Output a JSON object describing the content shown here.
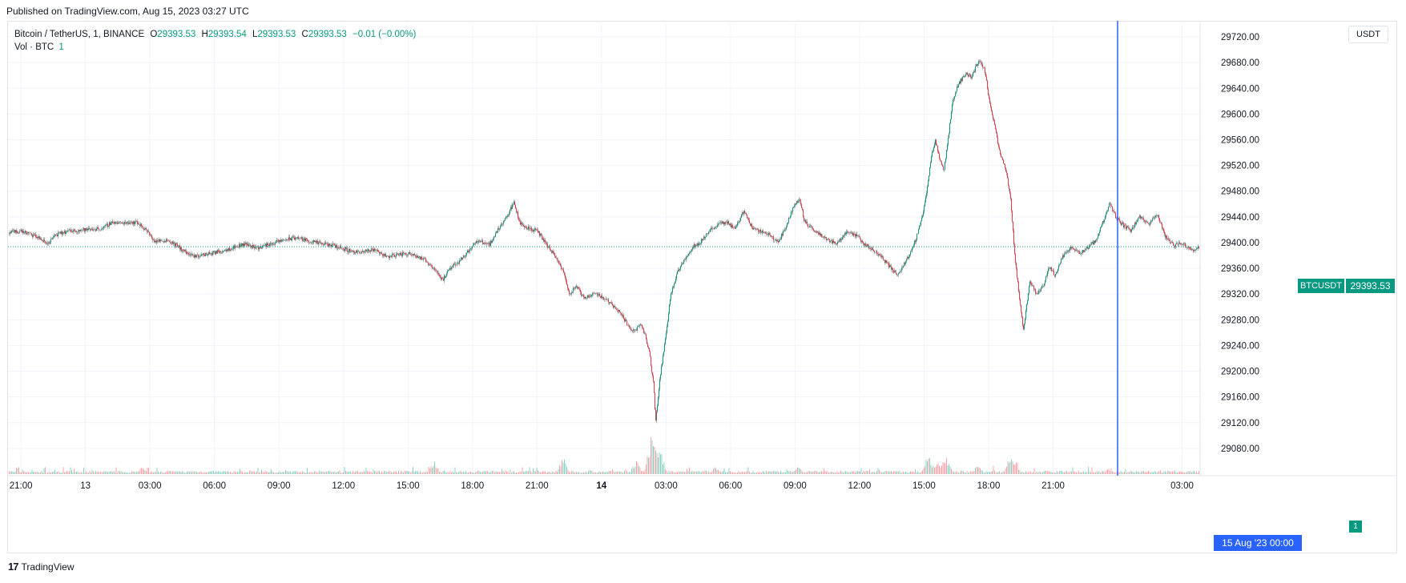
{
  "header": {
    "published": "Published on TradingView.com, Aug 15, 2023 03:27 UTC"
  },
  "legend": {
    "symbol": "Bitcoin / TetherUS, 1, BINANCE",
    "o_label": "O",
    "o_value": "29393.53",
    "h_label": "H",
    "h_value": "29393.54",
    "l_label": "L",
    "l_value": "29393.53",
    "c_label": "C",
    "c_value": "29393.53",
    "change": "−0.01 (−0.00%)",
    "vol_label": "Vol · BTC",
    "vol_value": "1"
  },
  "scale": {
    "currency": "USDT",
    "last_price": "29393.53",
    "symbol_tag": "BTCUSDT",
    "volume_tag": "1",
    "crosshair_time": "15 Aug '23   00:00"
  },
  "brand": {
    "logo": "17",
    "name": "TradingView"
  },
  "colors": {
    "up": "#089981",
    "down": "#f23645",
    "wick": "#4a4a4a",
    "grid": "#f0f3fa",
    "crosshair": "#2962ff",
    "price_line": "#089981"
  },
  "chart_data": {
    "type": "candlestick",
    "title": "Bitcoin / TetherUS, 1, BINANCE",
    "ylim": [
      29040,
      29740
    ],
    "y_ticks": [
      29080,
      29120,
      29160,
      29200,
      29240,
      29280,
      29320,
      29360,
      29400,
      29440,
      29480,
      29520,
      29560,
      29600,
      29640,
      29680,
      29720
    ],
    "y_tick_labels": [
      "29080.00",
      "29120.00",
      "29160.00",
      "29200.00",
      "29240.00",
      "29280.00",
      "29320.00",
      "29360.00",
      "29400.00",
      "29440.00",
      "29480.00",
      "29520.00",
      "29560.00",
      "29600.00",
      "29640.00",
      "29680.00",
      "29720.00"
    ],
    "x_range_hours": [
      -3.6,
      51.8
    ],
    "x_ticks": [
      {
        "h": -3,
        "label": "21:00",
        "bold": false
      },
      {
        "h": 0,
        "label": "13",
        "bold": false
      },
      {
        "h": 3,
        "label": "03:00",
        "bold": false
      },
      {
        "h": 6,
        "label": "06:00",
        "bold": false
      },
      {
        "h": 9,
        "label": "09:00",
        "bold": false
      },
      {
        "h": 12,
        "label": "12:00",
        "bold": false
      },
      {
        "h": 15,
        "label": "15:00",
        "bold": false
      },
      {
        "h": 18,
        "label": "18:00",
        "bold": false
      },
      {
        "h": 21,
        "label": "21:00",
        "bold": false
      },
      {
        "h": 24,
        "label": "14",
        "bold": true
      },
      {
        "h": 27,
        "label": "03:00",
        "bold": false
      },
      {
        "h": 30,
        "label": "06:00",
        "bold": false
      },
      {
        "h": 33,
        "label": "09:00",
        "bold": false
      },
      {
        "h": 36,
        "label": "12:00",
        "bold": false
      },
      {
        "h": 39,
        "label": "15:00",
        "bold": false
      },
      {
        "h": 42,
        "label": "18:00",
        "bold": false
      },
      {
        "h": 45,
        "label": "21:00",
        "bold": false
      },
      {
        "h": 51,
        "label": "03:00",
        "bold": false
      }
    ],
    "crosshair_hour": 48,
    "last_price": 29393.53,
    "price_path": [
      [
        -3.6,
        29415
      ],
      [
        -3.0,
        29418
      ],
      [
        -2.2,
        29408
      ],
      [
        -1.8,
        29398
      ],
      [
        -1.4,
        29412
      ],
      [
        -0.8,
        29418
      ],
      [
        0.0,
        29420
      ],
      [
        0.8,
        29422
      ],
      [
        1.2,
        29432
      ],
      [
        1.6,
        29430
      ],
      [
        2.0,
        29432
      ],
      [
        2.4,
        29431
      ],
      [
        2.8,
        29420
      ],
      [
        3.2,
        29402
      ],
      [
        3.8,
        29404
      ],
      [
        4.2,
        29396
      ],
      [
        4.6,
        29386
      ],
      [
        5.0,
        29378
      ],
      [
        5.6,
        29382
      ],
      [
        6.2,
        29386
      ],
      [
        6.8,
        29392
      ],
      [
        7.4,
        29398
      ],
      [
        8.0,
        29392
      ],
      [
        8.6,
        29398
      ],
      [
        9.2,
        29404
      ],
      [
        9.8,
        29408
      ],
      [
        10.4,
        29402
      ],
      [
        11.0,
        29398
      ],
      [
        11.6,
        29395
      ],
      [
        12.2,
        29388
      ],
      [
        12.8,
        29384
      ],
      [
        13.4,
        29390
      ],
      [
        14.0,
        29378
      ],
      [
        14.6,
        29382
      ],
      [
        15.2,
        29383
      ],
      [
        15.8,
        29372
      ],
      [
        16.2,
        29360
      ],
      [
        16.6,
        29342
      ],
      [
        17.0,
        29362
      ],
      [
        17.4,
        29372
      ],
      [
        17.8,
        29388
      ],
      [
        18.2,
        29402
      ],
      [
        18.8,
        29398
      ],
      [
        19.2,
        29422
      ],
      [
        19.6,
        29442
      ],
      [
        19.9,
        29462
      ],
      [
        20.2,
        29430
      ],
      [
        20.6,
        29422
      ],
      [
        21.0,
        29418
      ],
      [
        21.4,
        29398
      ],
      [
        21.8,
        29380
      ],
      [
        22.2,
        29355
      ],
      [
        22.5,
        29320
      ],
      [
        22.8,
        29332
      ],
      [
        23.2,
        29312
      ],
      [
        23.6,
        29322
      ],
      [
        24.0,
        29316
      ],
      [
        24.4,
        29306
      ],
      [
        24.8,
        29294
      ],
      [
        25.2,
        29272
      ],
      [
        25.5,
        29262
      ],
      [
        25.8,
        29272
      ],
      [
        26.0,
        29258
      ],
      [
        26.2,
        29230
      ],
      [
        26.4,
        29180
      ],
      [
        26.5,
        29122
      ],
      [
        26.7,
        29190
      ],
      [
        27.0,
        29262
      ],
      [
        27.2,
        29320
      ],
      [
        27.5,
        29352
      ],
      [
        27.8,
        29372
      ],
      [
        28.2,
        29392
      ],
      [
        28.6,
        29402
      ],
      [
        29.0,
        29418
      ],
      [
        29.4,
        29428
      ],
      [
        29.8,
        29432
      ],
      [
        30.2,
        29422
      ],
      [
        30.6,
        29450
      ],
      [
        31.0,
        29422
      ],
      [
        31.4,
        29418
      ],
      [
        31.8,
        29412
      ],
      [
        32.2,
        29400
      ],
      [
        32.6,
        29428
      ],
      [
        32.9,
        29455
      ],
      [
        33.2,
        29470
      ],
      [
        33.4,
        29434
      ],
      [
        33.8,
        29420
      ],
      [
        34.2,
        29412
      ],
      [
        34.6,
        29402
      ],
      [
        35.0,
        29400
      ],
      [
        35.4,
        29418
      ],
      [
        35.8,
        29412
      ],
      [
        36.2,
        29398
      ],
      [
        36.6,
        29388
      ],
      [
        37.0,
        29378
      ],
      [
        37.4,
        29362
      ],
      [
        37.7,
        29350
      ],
      [
        38.0,
        29362
      ],
      [
        38.3,
        29382
      ],
      [
        38.6,
        29406
      ],
      [
        38.9,
        29440
      ],
      [
        39.1,
        29480
      ],
      [
        39.3,
        29530
      ],
      [
        39.5,
        29560
      ],
      [
        39.7,
        29530
      ],
      [
        39.9,
        29510
      ],
      [
        40.1,
        29560
      ],
      [
        40.3,
        29620
      ],
      [
        40.6,
        29648
      ],
      [
        40.9,
        29662
      ],
      [
        41.2,
        29658
      ],
      [
        41.5,
        29682
      ],
      [
        41.8,
        29670
      ],
      [
        42.0,
        29625
      ],
      [
        42.3,
        29575
      ],
      [
        42.5,
        29540
      ],
      [
        42.8,
        29510
      ],
      [
        43.0,
        29470
      ],
      [
        43.2,
        29380
      ],
      [
        43.4,
        29320
      ],
      [
        43.6,
        29262
      ],
      [
        43.9,
        29342
      ],
      [
        44.2,
        29320
      ],
      [
        44.5,
        29332
      ],
      [
        44.8,
        29362
      ],
      [
        45.1,
        29348
      ],
      [
        45.4,
        29378
      ],
      [
        45.8,
        29392
      ],
      [
        46.2,
        29384
      ],
      [
        46.6,
        29392
      ],
      [
        47.0,
        29404
      ],
      [
        47.3,
        29432
      ],
      [
        47.6,
        29460
      ],
      [
        47.9,
        29440
      ],
      [
        48.2,
        29428
      ],
      [
        48.6,
        29418
      ],
      [
        49.0,
        29440
      ],
      [
        49.4,
        29428
      ],
      [
        49.8,
        29445
      ],
      [
        50.2,
        29410
      ],
      [
        50.6,
        29395
      ],
      [
        51.0,
        29400
      ],
      [
        51.4,
        29388
      ],
      [
        51.8,
        29393.53
      ]
    ],
    "volume_spikes": [
      {
        "h": 26.3,
        "v": 1.0
      },
      {
        "h": 26.5,
        "v": 0.85
      },
      {
        "h": 26.7,
        "v": 0.7
      },
      {
        "h": 25.6,
        "v": 0.35
      },
      {
        "h": 39.2,
        "v": 0.55
      },
      {
        "h": 40.0,
        "v": 0.5
      },
      {
        "h": 39.6,
        "v": 0.42
      },
      {
        "h": 43.0,
        "v": 0.48
      },
      {
        "h": 43.2,
        "v": 0.42
      },
      {
        "h": 22.2,
        "v": 0.45
      },
      {
        "h": 16.2,
        "v": 0.32
      },
      {
        "h": 33.1,
        "v": 0.22
      },
      {
        "h": 2.6,
        "v": 0.18
      },
      {
        "h": 29.3,
        "v": 0.2
      },
      {
        "h": 47.6,
        "v": 0.15
      },
      {
        "h": 41.5,
        "v": 0.2
      }
    ]
  }
}
